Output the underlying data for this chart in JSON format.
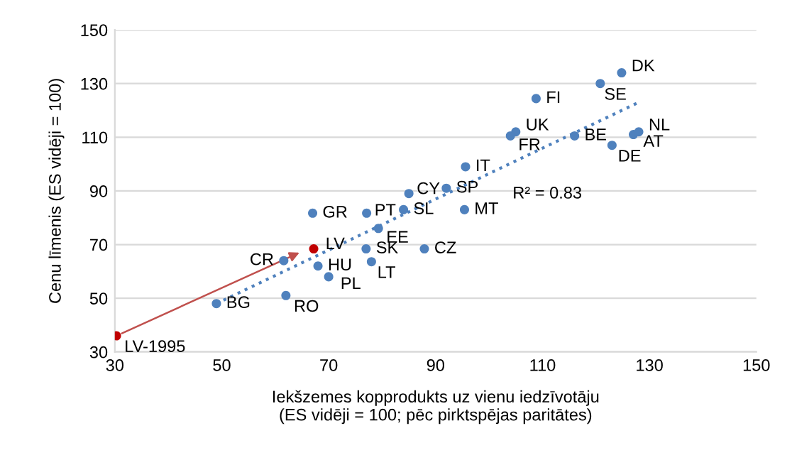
{
  "chart_data": {
    "type": "scatter",
    "xlabel": "Iekšzemes kopprodukts uz vienu iedzīvotāju\n(ES vidēji = 100; pēc pirktspējas paritātes)",
    "ylabel": "Cenu līmenis (ES vidēji = 100)",
    "xlim": [
      30,
      150
    ],
    "xticks": [
      30,
      50,
      70,
      90,
      110,
      130,
      150
    ],
    "ylim": [
      30,
      150
    ],
    "yticks": [
      30,
      50,
      70,
      90,
      110,
      130,
      150
    ],
    "grid": "y",
    "marker": "circle",
    "series": [
      {
        "color": "#4f81bd",
        "x": [
          124.8,
          120.8,
          108.8,
          105,
          104,
          116,
          123,
          127,
          128,
          95.6,
          85,
          92,
          95.4,
          77.1,
          84,
          67,
          79.3,
          77,
          87.9,
          61.6,
          68,
          78,
          70,
          62,
          49
        ],
        "values": [
          134,
          130,
          124.4,
          112,
          110.5,
          110.5,
          107,
          111,
          112,
          99,
          89,
          91,
          83,
          81.7,
          83,
          81.7,
          76,
          68.4,
          68.4,
          64,
          62,
          63.6,
          58,
          51,
          48
        ]
      },
      {
        "color": "#c00000",
        "x": [
          30.3,
          67.2
        ],
        "values": [
          36,
          68.4
        ]
      },
      {
        "type": "line",
        "color": "#4f81bd",
        "line_style": "dotted",
        "marker": "none",
        "x": [
          49,
          128
        ],
        "values": [
          48,
          123
        ]
      }
    ],
    "annotations": [
      {
        "text": "DK",
        "x": 124.8,
        "y": 134
      },
      {
        "text": "SE",
        "x": 120.8,
        "y": 130
      },
      {
        "text": "FI",
        "x": 108.8,
        "y": 124.4
      },
      {
        "text": "UK",
        "x": 105,
        "y": 112
      },
      {
        "text": "FR",
        "x": 104,
        "y": 110.5
      },
      {
        "text": "BE",
        "x": 116,
        "y": 110.5
      },
      {
        "text": "DE",
        "x": 123,
        "y": 107
      },
      {
        "text": "AT",
        "x": 127,
        "y": 111
      },
      {
        "text": "NL",
        "x": 128,
        "y": 112
      },
      {
        "text": "IT",
        "x": 95.6,
        "y": 99
      },
      {
        "text": "CY",
        "x": 85,
        "y": 89
      },
      {
        "text": "SP",
        "x": 92,
        "y": 91
      },
      {
        "text": "MT",
        "x": 95.4,
        "y": 83
      },
      {
        "text": "PT",
        "x": 77.1,
        "y": 81.7
      },
      {
        "text": "SL",
        "x": 84,
        "y": 83
      },
      {
        "text": "GR",
        "x": 67,
        "y": 81.7
      },
      {
        "text": "EE",
        "x": 79.3,
        "y": 76
      },
      {
        "text": "SK",
        "x": 77,
        "y": 68.4
      },
      {
        "text": "CZ",
        "x": 87.9,
        "y": 68.4
      },
      {
        "text": "CR",
        "x": 61.6,
        "y": 64
      },
      {
        "text": "HU",
        "x": 68,
        "y": 62
      },
      {
        "text": "LT",
        "x": 78,
        "y": 63.6
      },
      {
        "text": "PL",
        "x": 70,
        "y": 58
      },
      {
        "text": "RO",
        "x": 62,
        "y": 51
      },
      {
        "text": "BG",
        "x": 49,
        "y": 48
      },
      {
        "text": "LV-1995",
        "x": 30.3,
        "y": 36
      },
      {
        "text": "LV",
        "x": 67.2,
        "y": 68.4
      },
      "R² = 0.83"
    ]
  }
}
